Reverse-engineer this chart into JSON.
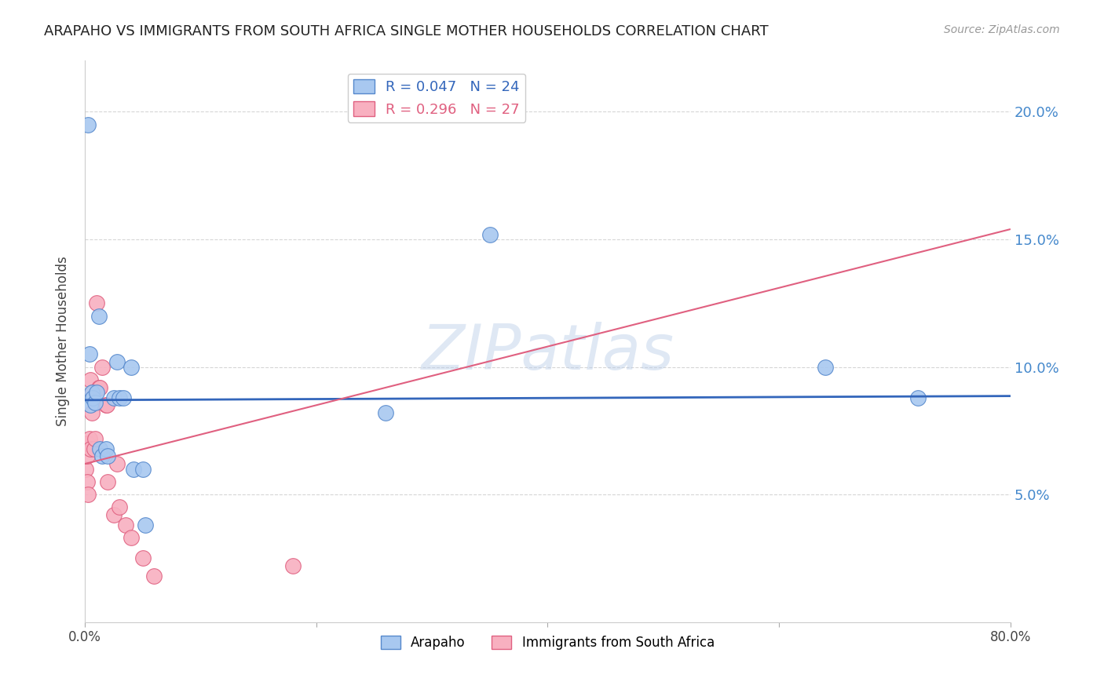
{
  "title": "ARAPAHO VS IMMIGRANTS FROM SOUTH AFRICA SINGLE MOTHER HOUSEHOLDS CORRELATION CHART",
  "source": "Source: ZipAtlas.com",
  "ylabel": "Single Mother Households",
  "yticks": [
    0.05,
    0.1,
    0.15,
    0.2
  ],
  "ytick_labels": [
    "5.0%",
    "10.0%",
    "15.0%",
    "20.0%"
  ],
  "xlim": [
    0.0,
    0.8
  ],
  "ylim": [
    0.0,
    0.22
  ],
  "arapaho_color": "#a8c8f0",
  "arapaho_edge": "#5588cc",
  "arapaho_line": "#3366bb",
  "sa_color": "#f8b0c0",
  "sa_edge": "#e06080",
  "sa_line": "#e06080",
  "grid_color": "#cccccc",
  "background_color": "#ffffff",
  "arapaho_x": [
    0.003,
    0.004,
    0.005,
    0.006,
    0.007,
    0.009,
    0.01,
    0.012,
    0.013,
    0.015,
    0.018,
    0.02,
    0.025,
    0.028,
    0.03,
    0.033,
    0.04,
    0.042,
    0.05,
    0.052,
    0.26,
    0.35,
    0.64,
    0.72
  ],
  "arapaho_y": [
    0.195,
    0.105,
    0.085,
    0.09,
    0.088,
    0.086,
    0.09,
    0.12,
    0.068,
    0.065,
    0.068,
    0.065,
    0.088,
    0.102,
    0.088,
    0.088,
    0.1,
    0.06,
    0.06,
    0.038,
    0.082,
    0.152,
    0.1,
    0.088
  ],
  "sa_x": [
    0.001,
    0.002,
    0.002,
    0.003,
    0.003,
    0.004,
    0.005,
    0.005,
    0.006,
    0.007,
    0.008,
    0.009,
    0.01,
    0.012,
    0.013,
    0.015,
    0.018,
    0.019,
    0.02,
    0.025,
    0.028,
    0.03,
    0.035,
    0.04,
    0.05,
    0.06,
    0.18
  ],
  "sa_y": [
    0.06,
    0.055,
    0.065,
    0.07,
    0.05,
    0.072,
    0.095,
    0.068,
    0.082,
    0.09,
    0.068,
    0.072,
    0.125,
    0.092,
    0.092,
    0.1,
    0.085,
    0.085,
    0.055,
    0.042,
    0.062,
    0.045,
    0.038,
    0.033,
    0.025,
    0.018,
    0.022
  ],
  "arapaho_trend_slope": 0.002,
  "arapaho_trend_intercept": 0.087,
  "sa_trend_slope": 0.115,
  "sa_trend_intercept": 0.062,
  "watermark": "ZIPatlas",
  "ytick_color": "#4488cc",
  "title_color": "#222222",
  "source_color": "#999999"
}
